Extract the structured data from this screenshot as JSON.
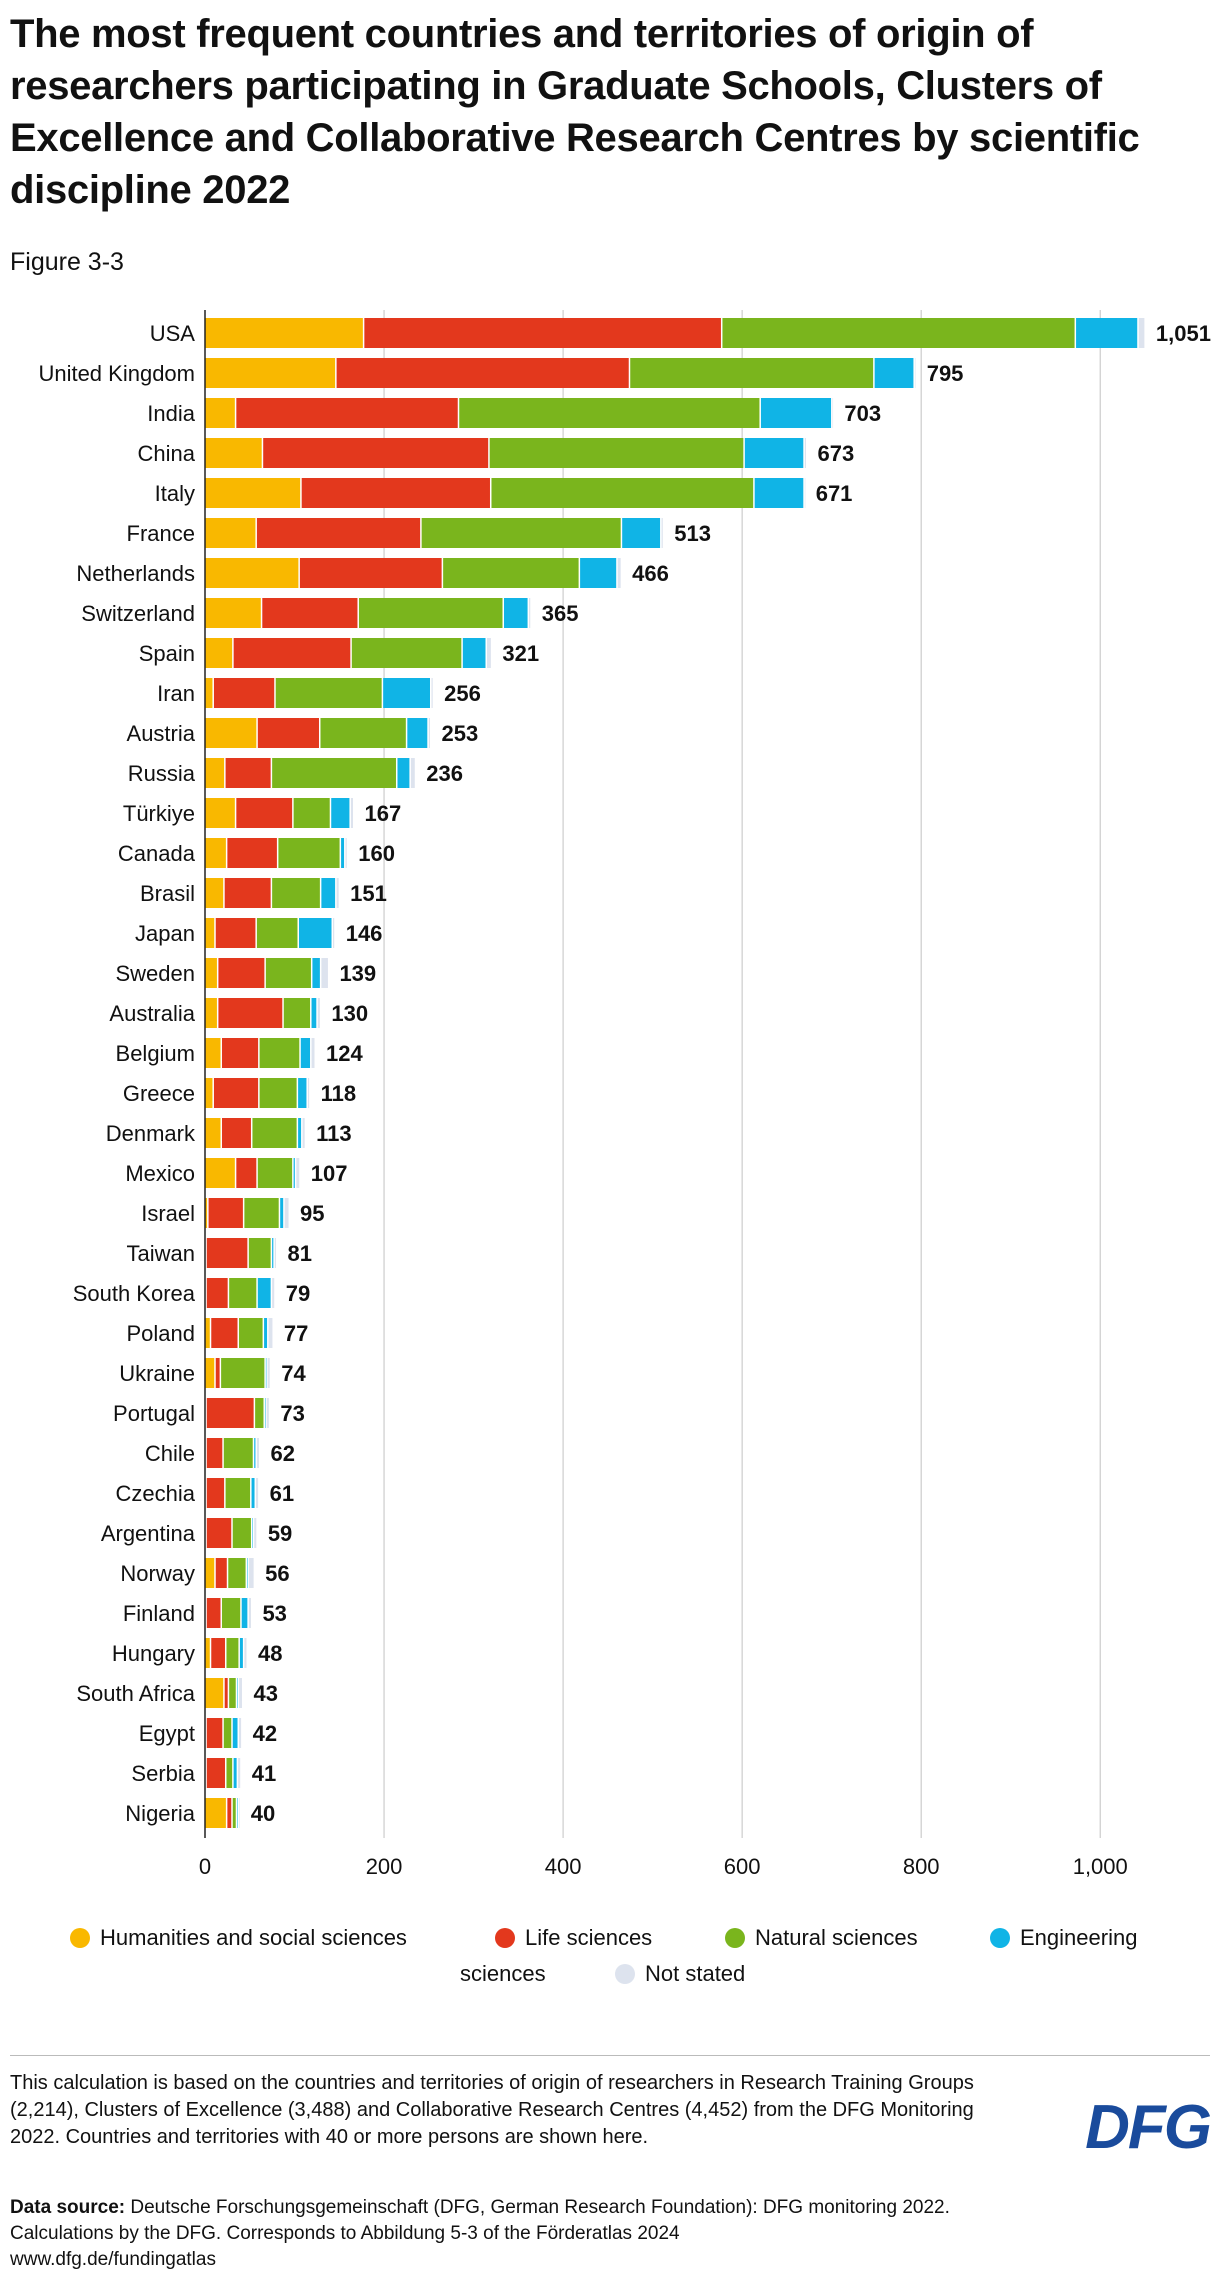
{
  "header": {
    "title": "The most frequent countries and territories of origin of researchers participating in Graduate Schools, Clusters of Excellence and Collaborative Research Centres by scientific discipline 2022",
    "figure_label": "Figure 3-3"
  },
  "colors": {
    "humanities": "#f9b800",
    "life": "#e3381d",
    "natural": "#7ab51d",
    "engineering": "#10b4e6",
    "not_stated": "#dde3ee",
    "grid": "#cccccc"
  },
  "chart_data": {
    "type": "bar",
    "orientation": "horizontal",
    "stacked": true,
    "title": "The most frequent countries and territories of origin of researchers participating in Graduate Schools, Clusters of Excellence and Collaborative Research Centres by scientific discipline 2022",
    "xlim": [
      0,
      1051
    ],
    "x_ticks": [
      0,
      200,
      400,
      600,
      800,
      1000
    ],
    "x_tick_labels": [
      "0",
      "200",
      "400",
      "600",
      "800",
      "1,000"
    ],
    "grid": true,
    "legend_position": "bottom",
    "categories": [
      "USA",
      "United Kingdom",
      "India",
      "China",
      "Italy",
      "France",
      "Netherlands",
      "Switzerland",
      "Spain",
      "Iran",
      "Austria",
      "Russia",
      "Türkiye",
      "Canada",
      "Brasil",
      "Japan",
      "Sweden",
      "Australia",
      "Belgium",
      "Greece",
      "Denmark",
      "Mexico",
      "Israel",
      "Taiwan",
      "South Korea",
      "Poland",
      "Ukraine",
      "Portugal",
      "Chile",
      "Czechia",
      "Argentina",
      "Norway",
      "Finland",
      "Hungary",
      "South Africa",
      "Egypt",
      "Serbia",
      "Nigeria"
    ],
    "totals": [
      1051,
      795,
      703,
      673,
      671,
      513,
      466,
      365,
      321,
      256,
      253,
      236,
      167,
      160,
      151,
      146,
      139,
      130,
      124,
      118,
      113,
      107,
      95,
      81,
      79,
      77,
      74,
      73,
      62,
      61,
      59,
      56,
      53,
      48,
      43,
      42,
      41,
      40
    ],
    "total_labels": [
      "1,051",
      "795",
      "703",
      "673",
      "671",
      "513",
      "466",
      "365",
      "321",
      "256",
      "253",
      "236",
      "167",
      "160",
      "151",
      "146",
      "139",
      "130",
      "124",
      "118",
      "113",
      "107",
      "95",
      "81",
      "79",
      "77",
      "74",
      "73",
      "62",
      "61",
      "59",
      "56",
      "53",
      "48",
      "43",
      "42",
      "41",
      "40"
    ],
    "series": [
      {
        "name": "Humanities and social sciences",
        "color": "#f9b800",
        "values": [
          178,
          147,
          35,
          65,
          108,
          58,
          106,
          64,
          32,
          10,
          59,
          23,
          35,
          25,
          22,
          12,
          15,
          15,
          19,
          10,
          19,
          35,
          4,
          2,
          2,
          7,
          12,
          2,
          2,
          2,
          2,
          12,
          2,
          7,
          22,
          2,
          2,
          25
        ]
      },
      {
        "name": "Life sciences",
        "color": "#e3381d",
        "values": [
          400,
          328,
          249,
          253,
          212,
          184,
          160,
          108,
          132,
          69,
          70,
          52,
          64,
          57,
          53,
          46,
          53,
          73,
          42,
          51,
          34,
          24,
          40,
          47,
          25,
          31,
          6,
          54,
          19,
          21,
          29,
          14,
          17,
          17,
          5,
          19,
          22,
          6
        ]
      },
      {
        "name": "Natural sciences",
        "color": "#7ab51d",
        "values": [
          395,
          273,
          337,
          285,
          294,
          224,
          153,
          162,
          124,
          120,
          97,
          140,
          42,
          70,
          55,
          47,
          52,
          31,
          46,
          43,
          51,
          40,
          40,
          26,
          32,
          28,
          50,
          11,
          34,
          29,
          22,
          21,
          22,
          15,
          9,
          10,
          8,
          5
        ]
      },
      {
        "name": "Engineering",
        "color": "#10b4e6",
        "values": [
          70,
          45,
          80,
          67,
          56,
          44,
          42,
          28,
          27,
          54,
          24,
          15,
          22,
          5,
          17,
          38,
          10,
          7,
          12,
          11,
          5,
          3,
          5,
          3,
          16,
          5,
          2,
          2,
          3,
          5,
          2,
          2,
          8,
          5,
          2,
          7,
          5,
          2
        ]
      },
      {
        "name": "Not stated",
        "color": "#dde3ee",
        "values": [
          8,
          2,
          2,
          3,
          1,
          3,
          5,
          3,
          6,
          3,
          3,
          6,
          4,
          3,
          4,
          3,
          9,
          4,
          5,
          3,
          4,
          5,
          6,
          3,
          4,
          6,
          4,
          4,
          4,
          4,
          4,
          7,
          4,
          4,
          5,
          4,
          4,
          2
        ]
      }
    ]
  },
  "legend": {
    "items": [
      {
        "label": "Humanities and social sciences",
        "color": "#f9b800"
      },
      {
        "label": "Life sciences",
        "color": "#e3381d"
      },
      {
        "label": "Natural sciences",
        "color": "#7ab51d"
      },
      {
        "label": "Engineering",
        "color": "#10b4e6"
      },
      {
        "label": "sciences",
        "color": ""
      },
      {
        "label": "Not stated",
        "color": "#dde3ee"
      }
    ]
  },
  "footer": {
    "note": "This calculation is based on the countries and territories of origin of researchers in Research Training Groups (2,214), Clusters of Excellence (3,488) and Collaborative Research Centres (4,452) from the DFG Monitoring 2022. Countries and territories with 40 or more persons are shown here.",
    "source_label": "Data source:",
    "source_text": "Deutsche Forschungsgemeinschaft (DFG, German Research Foundation): DFG monitoring 2022. Calculations by the DFG. Corresponds to Abbildung 5-3 of the Förderatlas 2024",
    "url": "www.dfg.de/fundingatlas",
    "logo": "DFG"
  }
}
